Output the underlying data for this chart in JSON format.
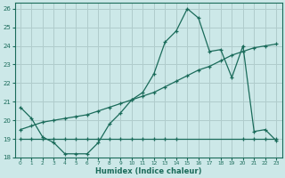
{
  "xlabel": "Humidex (Indice chaleur)",
  "bg_color": "#cce8e8",
  "grid_color": "#b0cccc",
  "line_color": "#1a6b5a",
  "xlim": [
    0,
    23
  ],
  "ylim": [
    18,
    26.3
  ],
  "yticks": [
    18,
    19,
    20,
    21,
    22,
    23,
    24,
    25,
    26
  ],
  "xticks": [
    0,
    1,
    2,
    3,
    4,
    5,
    6,
    7,
    8,
    9,
    10,
    11,
    12,
    13,
    14,
    15,
    16,
    17,
    18,
    19,
    20,
    21,
    22,
    23
  ],
  "series": [
    {
      "x": [
        0,
        1,
        2,
        3,
        4,
        5,
        6,
        7,
        8,
        9,
        10,
        11,
        12,
        13,
        14,
        15,
        16,
        17,
        18,
        19,
        20,
        21,
        22,
        23
      ],
      "y": [
        20.7,
        20.1,
        19.1,
        18.8,
        18.2,
        18.2,
        18.2,
        18.8,
        19.8,
        20.4,
        21.1,
        21.5,
        22.5,
        24.2,
        24.8,
        26.0,
        25.5,
        23.7,
        23.8,
        22.3,
        24.0,
        19.4,
        19.5,
        18.9
      ]
    },
    {
      "x": [
        0,
        1,
        2,
        3,
        4,
        5,
        6,
        7,
        8,
        9,
        10,
        11,
        12,
        13,
        14,
        20,
        21,
        22,
        23
      ],
      "y": [
        19.0,
        19.0,
        19.0,
        19.0,
        19.0,
        19.0,
        19.0,
        19.0,
        19.0,
        19.0,
        19.0,
        19.0,
        19.0,
        19.0,
        19.0,
        19.0,
        19.0,
        19.0,
        19.0
      ]
    },
    {
      "x": [
        0,
        1,
        2,
        3,
        4,
        5,
        6,
        7,
        8,
        9,
        10,
        11,
        12,
        13,
        14,
        15,
        16,
        17,
        18,
        19,
        20,
        21,
        22,
        23
      ],
      "y": [
        19.5,
        19.7,
        19.9,
        20.0,
        20.1,
        20.2,
        20.3,
        20.5,
        20.7,
        20.9,
        21.1,
        21.3,
        21.5,
        21.8,
        22.1,
        22.4,
        22.7,
        22.9,
        23.2,
        23.5,
        23.7,
        23.9,
        24.0,
        24.1
      ]
    }
  ]
}
